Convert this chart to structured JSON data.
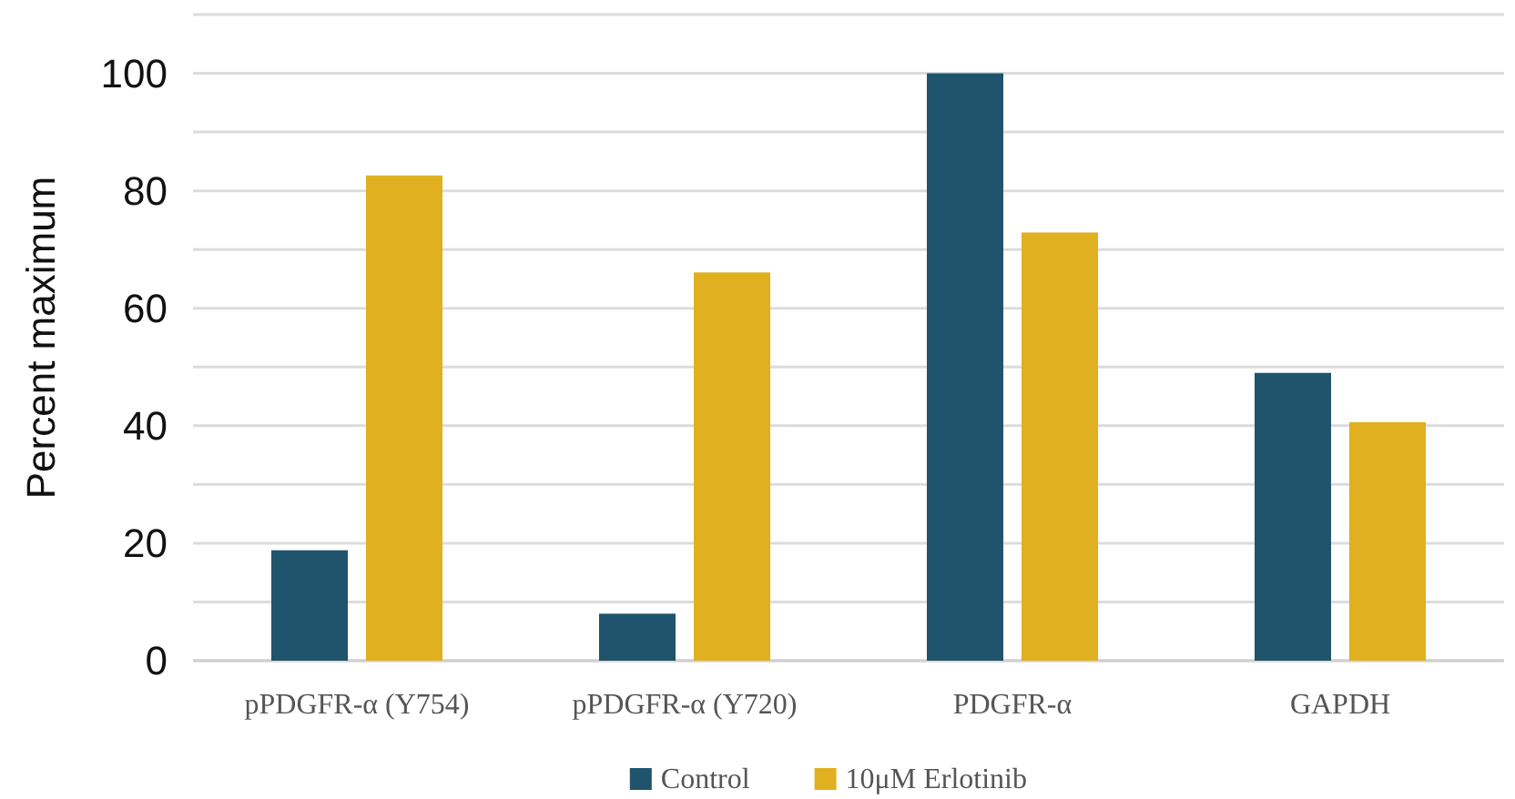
{
  "chart_data": {
    "type": "bar",
    "ylabel": "Percent maximum",
    "categories": [
      "pPDGFR-α (Y754)",
      "pPDGFR-α (Y720)",
      "PDGFR-α",
      "GAPDH"
    ],
    "series": [
      {
        "name": "Control",
        "color": "#1f546c",
        "values": [
          18.8,
          8,
          100,
          49
        ]
      },
      {
        "name": "10μM Erlotinib",
        "color": "#e0b020",
        "values": [
          82.6,
          66.1,
          72.9,
          40.6
        ]
      }
    ],
    "ylim": [
      0,
      110
    ],
    "yticks": [
      0,
      {
        "value": 10,
        "label": null
      },
      20,
      {
        "value": 30,
        "label": null
      },
      40,
      {
        "value": 50,
        "label": null
      },
      60,
      {
        "value": 70,
        "label": null
      },
      80,
      {
        "value": 90,
        "label": null
      },
      100,
      {
        "value": 110,
        "label": null
      }
    ],
    "grid": "y",
    "legend": "bottom"
  }
}
